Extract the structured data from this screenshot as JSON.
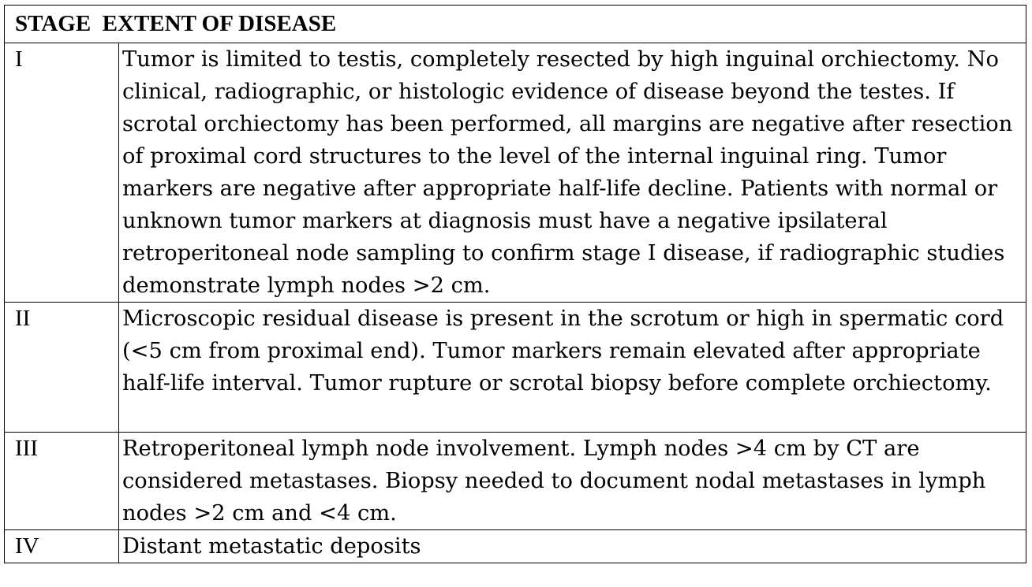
{
  "table": {
    "header": "STAGE  EXTENT OF DISEASE",
    "rows": [
      {
        "stage": "I",
        "extent": "Tumor is limited to testis, completely resected by high inguinal orchiectomy. No clinical, radiographic, or histologic evidence of disease beyond the testes. If scrotal orchiectomy has been performed, all margins are negative after resection of proximal cord structures to the level of the internal inguinal ring. Tumor markers are negative after appropriate half-life decline. Patients with normal or unknown tumor markers at diagnosis must have a negative ipsilateral retroperitoneal node sampling to confirm stage I disease, if radiographic studies demonstrate lymph nodes >2 cm."
      },
      {
        "stage": "II",
        "extent": "Microscopic residual disease is present in the scrotum or high in spermatic cord (<5 cm from proximal end). Tumor markers remain elevated after appropriate half-life interval. Tumor rupture or scrotal biopsy before complete orchiectomy."
      },
      {
        "stage": "III",
        "extent": "Retroperitoneal lymph node involvement. Lymph nodes >4 cm by CT are considered metastases. Biopsy needed to document nodal metastases in lymph nodes >2 cm and <4 cm."
      },
      {
        "stage": "IV",
        "extent": "Distant metastatic deposits"
      }
    ]
  }
}
